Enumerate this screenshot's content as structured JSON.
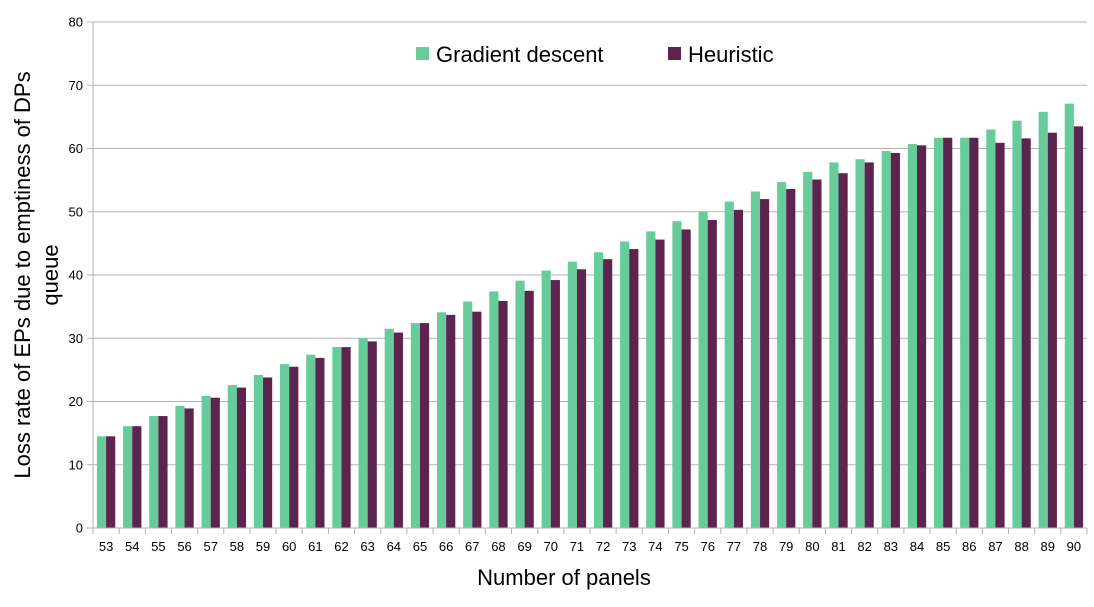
{
  "chart_data": {
    "type": "bar",
    "title": "",
    "xlabel": "Number of panels",
    "ylabel_lines": [
      "Loss rate of EPs due to emptiness of DPs",
      "queue"
    ],
    "ylim": [
      0,
      80
    ],
    "ytick_step": 10,
    "yticks": [
      "0",
      "10",
      "20",
      "30",
      "40",
      "50",
      "60",
      "70",
      "80"
    ],
    "grid": true,
    "legend_position": "top-center",
    "categories": [
      "53",
      "54",
      "55",
      "56",
      "57",
      "58",
      "59",
      "60",
      "61",
      "62",
      "63",
      "64",
      "65",
      "66",
      "67",
      "68",
      "69",
      "70",
      "71",
      "72",
      "73",
      "74",
      "75",
      "76",
      "77",
      "78",
      "79",
      "80",
      "81",
      "82",
      "83",
      "84",
      "85",
      "86",
      "87",
      "88",
      "89",
      "90"
    ],
    "series": [
      {
        "name": "Gradient descent",
        "color": "#66cc99",
        "values": [
          14.5,
          16.1,
          17.7,
          19.3,
          20.9,
          22.6,
          24.2,
          25.9,
          27.4,
          28.6,
          30.0,
          31.5,
          32.4,
          34.1,
          35.8,
          37.4,
          39.1,
          40.7,
          42.1,
          43.6,
          45.3,
          46.9,
          48.5,
          50.0,
          51.6,
          53.2,
          54.7,
          56.3,
          57.8,
          58.3,
          59.6,
          60.7,
          61.7,
          61.7,
          63.0,
          64.4,
          65.8,
          67.1
        ]
      },
      {
        "name": "Heuristic",
        "color": "#5e2450",
        "values": [
          14.5,
          16.1,
          17.7,
          18.9,
          20.6,
          22.2,
          23.8,
          25.5,
          26.9,
          28.6,
          29.5,
          30.9,
          32.4,
          33.7,
          34.2,
          35.9,
          37.5,
          39.2,
          40.9,
          42.5,
          44.1,
          45.6,
          47.2,
          48.7,
          50.3,
          52.0,
          53.6,
          55.1,
          56.1,
          57.8,
          59.3,
          60.5,
          61.7,
          61.7,
          60.9,
          61.6,
          62.5,
          63.5
        ]
      }
    ]
  }
}
